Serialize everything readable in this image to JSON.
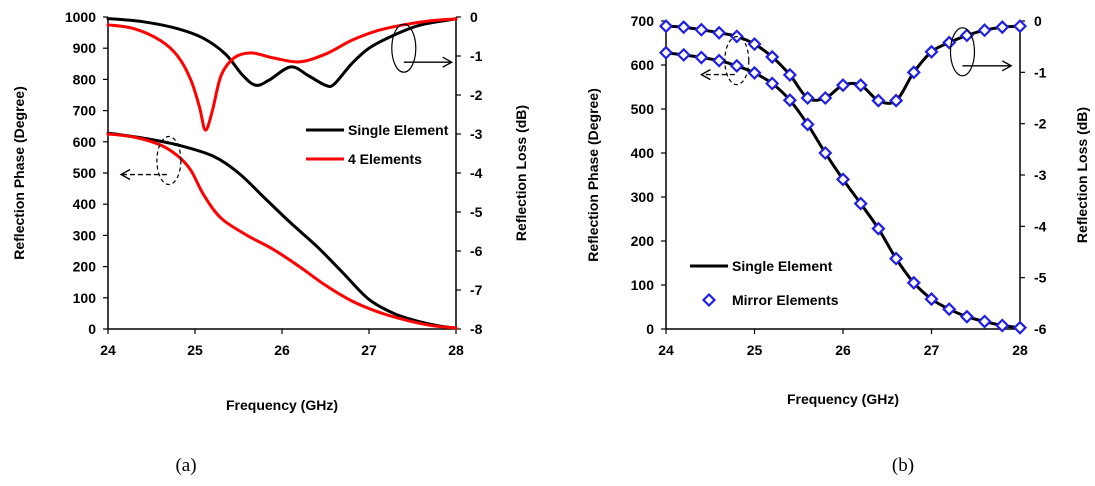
{
  "colors": {
    "black": "#000000",
    "red": "#ff0000",
    "blue": "#1f1fe6"
  },
  "chart_data": [
    {
      "type": "line",
      "caption": "(a)",
      "xlabel": "Frequency (GHz)",
      "ylabel_left": "Reflection Phase (Degree)",
      "ylabel_right": "Reflection Loss (dB)",
      "xlim": [
        24,
        28
      ],
      "ylim_left": [
        0,
        1000
      ],
      "ylim_right": [
        -8,
        0
      ],
      "x_ticks": [
        "24",
        "25",
        "26",
        "27",
        "28"
      ],
      "y_left_ticks": [
        "0",
        "100",
        "200",
        "300",
        "400",
        "500",
        "600",
        "700",
        "800",
        "900",
        "1000"
      ],
      "y_right_ticks": [
        "-8",
        "-7",
        "-6",
        "-5",
        "-4",
        "-3",
        "-2",
        "-1",
        "0"
      ],
      "grid": false,
      "legend_position": "center-right",
      "series": [
        {
          "name": "Single Element",
          "color": "#000000",
          "axis": "left",
          "kind": "phase",
          "legend": true,
          "x": [
            24.0,
            24.4,
            24.8,
            25.2,
            25.5,
            25.8,
            26.1,
            26.4,
            26.7,
            27.0,
            27.3,
            27.6,
            27.8,
            28.0
          ],
          "y": [
            628,
            612,
            590,
            555,
            500,
            420,
            340,
            265,
            180,
            95,
            48,
            22,
            10,
            3
          ]
        },
        {
          "name": "4 Elements",
          "color": "#ff0000",
          "axis": "left",
          "kind": "phase",
          "legend": true,
          "x": [
            24.0,
            24.3,
            24.6,
            24.8,
            24.95,
            25.1,
            25.3,
            25.6,
            25.9,
            26.2,
            26.5,
            26.8,
            27.1,
            27.4,
            27.7,
            28.0
          ],
          "y": [
            625,
            615,
            590,
            555,
            510,
            430,
            355,
            300,
            255,
            200,
            140,
            90,
            55,
            30,
            12,
            3
          ]
        },
        {
          "name": "Single Element",
          "color": "#000000",
          "axis": "right",
          "kind": "loss",
          "legend": false,
          "x": [
            24.0,
            24.4,
            24.8,
            25.1,
            25.35,
            25.55,
            25.7,
            25.85,
            26.1,
            26.3,
            26.5,
            26.6,
            26.8,
            27.0,
            27.3,
            27.6,
            28.0
          ],
          "y": [
            -0.04,
            -0.12,
            -0.3,
            -0.55,
            -0.95,
            -1.5,
            -1.75,
            -1.62,
            -1.28,
            -1.5,
            -1.75,
            -1.72,
            -1.2,
            -0.8,
            -0.45,
            -0.2,
            -0.05
          ]
        },
        {
          "name": "4 Elements",
          "color": "#ff0000",
          "axis": "right",
          "kind": "loss",
          "legend": false,
          "x": [
            24.0,
            24.3,
            24.6,
            24.8,
            24.95,
            25.05,
            25.12,
            25.2,
            25.3,
            25.45,
            25.65,
            25.9,
            26.2,
            26.5,
            26.8,
            27.1,
            27.4,
            27.7,
            28.0
          ],
          "y": [
            -0.2,
            -0.3,
            -0.6,
            -1.0,
            -1.6,
            -2.3,
            -2.9,
            -2.4,
            -1.5,
            -1.05,
            -0.92,
            -1.05,
            -1.15,
            -0.95,
            -0.6,
            -0.35,
            -0.2,
            -0.1,
            -0.05
          ]
        }
      ],
      "annotations": [
        {
          "ellipse_at": [
            24.7,
            540
          ],
          "arrow_to_x": 24.15,
          "target_axis": "left"
        },
        {
          "ellipse_at": [
            27.4,
            900
          ],
          "arrow_to_x": 27.95,
          "target_axis": "right"
        }
      ]
    },
    {
      "type": "line",
      "caption": "(b)",
      "xlabel": "Frequency (GHz)",
      "ylabel_left": "Reflection Phase (Degree)",
      "ylabel_right": "Reflection Loss (dB)",
      "xlim": [
        24,
        28
      ],
      "ylim_left": [
        0,
        700
      ],
      "ylim_right": [
        -6,
        0
      ],
      "x_ticks": [
        "24",
        "25",
        "26",
        "27",
        "28"
      ],
      "y_left_ticks": [
        "0",
        "100",
        "200",
        "300",
        "400",
        "500",
        "600",
        "700"
      ],
      "y_right_ticks": [
        "-6",
        "-5",
        "-4",
        "-3",
        "-2",
        "-1",
        "0"
      ],
      "grid": false,
      "legend_position": "bottom-left",
      "series": [
        {
          "name": "Single Element",
          "color": "#000000",
          "axis": "left",
          "kind": "phase",
          "legend": true,
          "markers": false,
          "x": [
            24.0,
            24.2,
            24.4,
            24.6,
            24.8,
            25.0,
            25.2,
            25.4,
            25.6,
            25.8,
            26.0,
            26.2,
            26.4,
            26.6,
            26.8,
            27.0,
            27.2,
            27.4,
            27.6,
            27.8,
            28.0
          ],
          "y": [
            628,
            623,
            617,
            610,
            598,
            582,
            558,
            520,
            465,
            400,
            340,
            285,
            228,
            160,
            105,
            68,
            45,
            28,
            17,
            8,
            3
          ]
        },
        {
          "name": "Mirror Elements",
          "color": "#1f1fe6",
          "axis": "left",
          "kind": "phase",
          "legend": true,
          "markers": true,
          "x": [
            24.0,
            24.2,
            24.4,
            24.6,
            24.8,
            25.0,
            25.2,
            25.4,
            25.6,
            25.8,
            26.0,
            26.2,
            26.4,
            26.6,
            26.8,
            27.0,
            27.2,
            27.4,
            27.6,
            27.8,
            28.0
          ],
          "y": [
            628,
            623,
            617,
            610,
            598,
            582,
            558,
            520,
            465,
            400,
            340,
            285,
            228,
            160,
            105,
            68,
            45,
            28,
            17,
            8,
            3
          ]
        },
        {
          "name": "Single Element",
          "color": "#000000",
          "axis": "right",
          "kind": "loss",
          "legend": false,
          "markers": false,
          "x": [
            24.0,
            24.2,
            24.4,
            24.6,
            24.8,
            25.0,
            25.2,
            25.4,
            25.6,
            25.8,
            26.0,
            26.2,
            26.4,
            26.6,
            26.8,
            27.0,
            27.2,
            27.4,
            27.6,
            27.8,
            28.0
          ],
          "y": [
            -0.1,
            -0.12,
            -0.17,
            -0.23,
            -0.3,
            -0.45,
            -0.7,
            -1.05,
            -1.5,
            -1.5,
            -1.25,
            -1.25,
            -1.55,
            -1.55,
            -1.0,
            -0.6,
            -0.42,
            -0.28,
            -0.18,
            -0.12,
            -0.1
          ]
        },
        {
          "name": "Mirror Elements",
          "color": "#1f1fe6",
          "axis": "right",
          "kind": "loss",
          "legend": false,
          "markers": true,
          "x": [
            24.0,
            24.2,
            24.4,
            24.6,
            24.8,
            25.0,
            25.2,
            25.4,
            25.6,
            25.8,
            26.0,
            26.2,
            26.4,
            26.6,
            26.8,
            27.0,
            27.2,
            27.4,
            27.6,
            27.8,
            28.0
          ],
          "y": [
            -0.1,
            -0.12,
            -0.17,
            -0.23,
            -0.3,
            -0.45,
            -0.7,
            -1.05,
            -1.5,
            -1.5,
            -1.25,
            -1.25,
            -1.55,
            -1.55,
            -1.0,
            -0.6,
            -0.42,
            -0.28,
            -0.18,
            -0.12,
            -0.1
          ]
        }
      ],
      "annotations": [
        {
          "ellipse_at": [
            24.8,
            610
          ],
          "arrow_to_x": 24.4,
          "target_axis": "left"
        },
        {
          "ellipse_at": [
            27.35,
            630
          ],
          "arrow_to_x": 27.9,
          "target_axis": "right"
        }
      ]
    }
  ]
}
